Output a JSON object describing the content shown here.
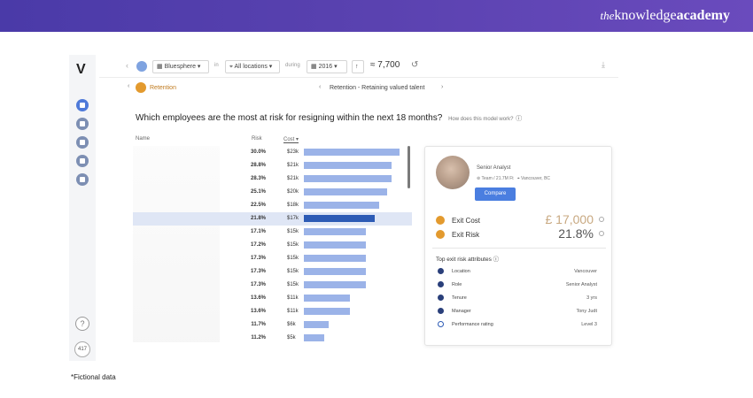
{
  "brand": {
    "the": "the",
    "knowledge": "knowledge",
    "academy": "academy"
  },
  "sidebar": {
    "logo": "V",
    "help": "?",
    "count": "417"
  },
  "toolbar": {
    "org": "Bluesphere",
    "in_label": "in",
    "location": "All locations",
    "during_label": "during",
    "year": "2016",
    "headcount": "≈ 7,700",
    "reset": "↺"
  },
  "subnav": {
    "section": "Retention",
    "insight": "Retention - Retaining valued talent"
  },
  "question": {
    "text": "Which employees are the most at risk for resigning within the next 18 months?",
    "howto": "How does this model work?"
  },
  "table": {
    "headers": {
      "name": "Name",
      "risk": "Risk",
      "cost": "Cost"
    },
    "rows": [
      {
        "risk": "30.0%",
        "cost": "$23k",
        "value": 23
      },
      {
        "risk": "28.8%",
        "cost": "$21k",
        "value": 21
      },
      {
        "risk": "28.3%",
        "cost": "$21k",
        "value": 21
      },
      {
        "risk": "25.1%",
        "cost": "$20k",
        "value": 20
      },
      {
        "risk": "22.5%",
        "cost": "$18k",
        "value": 18
      },
      {
        "risk": "21.8%",
        "cost": "$17k",
        "value": 17,
        "highlight": true
      },
      {
        "risk": "17.1%",
        "cost": "$15k",
        "value": 15
      },
      {
        "risk": "17.2%",
        "cost": "$15k",
        "value": 15
      },
      {
        "risk": "17.3%",
        "cost": "$15k",
        "value": 15
      },
      {
        "risk": "17.3%",
        "cost": "$15k",
        "value": 15
      },
      {
        "risk": "17.3%",
        "cost": "$15k",
        "value": 15
      },
      {
        "risk": "13.6%",
        "cost": "$11k",
        "value": 11
      },
      {
        "risk": "13.6%",
        "cost": "$11k",
        "value": 11
      },
      {
        "risk": "11.7%",
        "cost": "$6k",
        "value": 6
      },
      {
        "risk": "11.2%",
        "cost": "$5k",
        "value": 5
      }
    ]
  },
  "card": {
    "role": "Senior Analyst",
    "meta_team": "Team / 21.7M Ft",
    "meta_location": "Vancouver, BC",
    "compare": "Compare",
    "exit_cost_label": "Exit Cost",
    "exit_cost_value": "£ 17,000",
    "exit_risk_label": "Exit Risk",
    "exit_risk_value": "21.8%",
    "attr_title": "Top exit risk attributes",
    "attributes": [
      {
        "name": "Location",
        "value": "Vancouver"
      },
      {
        "name": "Role",
        "value": "Senior Analyst"
      },
      {
        "name": "Tenure",
        "value": "3 yrs"
      },
      {
        "name": "Manager",
        "value": "Tony Judt"
      },
      {
        "name": "Performance rating",
        "value": "Level 3"
      }
    ]
  },
  "footnote": "*Fictional data"
}
